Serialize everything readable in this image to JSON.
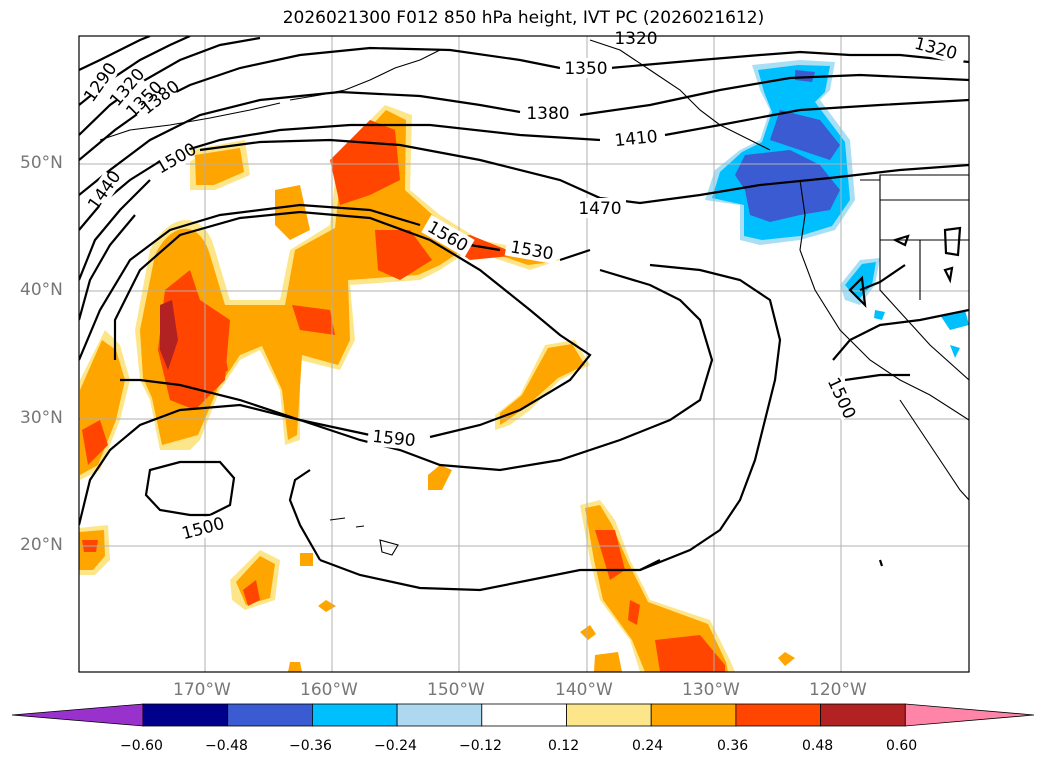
{
  "title": "2026021300 F012 850 hPa height, IVT PC (2026021612)",
  "map": {
    "lat_labels": [
      "50°N",
      "40°N",
      "30°N",
      "20°N"
    ],
    "lon_labels": [
      "170°W",
      "160°W",
      "150°W",
      "140°W",
      "130°W",
      "120°W"
    ],
    "contour_labels": [
      "1290",
      "1320",
      "1350",
      "1380",
      "1440",
      "1500",
      "1350",
      "1380",
      "1410",
      "1470",
      "1560",
      "1530",
      "1590",
      "1500",
      "1500",
      "1320",
      "1320"
    ],
    "fill_colors": {
      "neg_strong": "#3a5bd1",
      "neg_mid": "#00bfff",
      "neg_weak": "#a9dff5",
      "pos_weak": "#fde68a",
      "pos_mid": "#ffa500",
      "pos_strong": "#ff4500",
      "pos_max": "#b22222"
    }
  },
  "colorbar": {
    "ticks": [
      "−0.60",
      "−0.48",
      "−0.36",
      "−0.24",
      "−0.12",
      "0.12",
      "0.24",
      "0.36",
      "0.48",
      "0.60"
    ],
    "colors": [
      "#9932cc",
      "#00008b",
      "#3a5bd1",
      "#00bfff",
      "#add8f0",
      "#ffffff",
      "#fde68a",
      "#ffa500",
      "#ff4500",
      "#b22222",
      "#ff85a8"
    ]
  }
}
